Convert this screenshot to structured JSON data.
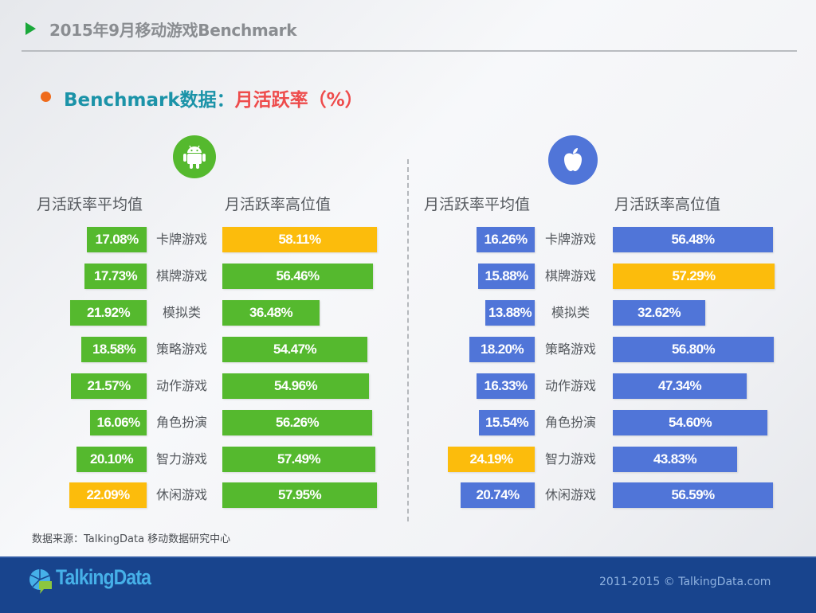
{
  "header": {
    "title": "2015年9月移动游戏Benchmark",
    "subtitle_prefix": "Benchmark数据：",
    "subtitle_metric": "月活跃率（%）"
  },
  "colors": {
    "android_green": "#55b92e",
    "ios_blue": "#5075d8",
    "highlight_yellow": "#fcbc0c",
    "title_arrow": "#1aa83a",
    "bullet_orange": "#ef6b1c",
    "subtitle_teal": "#1b93a8",
    "subtitle_red": "#ee4b4b",
    "footer_bg": "#18448d"
  },
  "android": {
    "icon": "android-icon",
    "avg_header": "月活跃率平均值",
    "high_header": "月活跃率高位值"
  },
  "ios": {
    "icon": "apple-icon",
    "avg_header": "月活跃率平均值",
    "high_header": "月活跃率高位值"
  },
  "chart_data": [
    {
      "type": "bar",
      "title": "Android - 月活跃率平均值",
      "categories": [
        "卡牌游戏",
        "棋牌游戏",
        "模拟类",
        "策略游戏",
        "动作游戏",
        "角色扮演",
        "智力游戏",
        "休闲游戏"
      ],
      "values": [
        17.08,
        17.73,
        21.92,
        18.58,
        21.57,
        16.06,
        20.1,
        22.09
      ],
      "labels": [
        "17.08%",
        "17.73%",
        "21.92%",
        "18.58%",
        "21.57%",
        "16.06%",
        "20.10%",
        "22.09%"
      ],
      "highlight_index": 7,
      "orientation": "horizontal",
      "direction": "right-to-left",
      "unit": "%"
    },
    {
      "type": "bar",
      "title": "Android - 月活跃率高位值",
      "categories": [
        "卡牌游戏",
        "棋牌游戏",
        "模拟类",
        "策略游戏",
        "动作游戏",
        "角色扮演",
        "智力游戏",
        "休闲游戏"
      ],
      "values": [
        58.11,
        56.46,
        36.48,
        54.47,
        54.96,
        56.26,
        57.49,
        57.95
      ],
      "labels": [
        "58.11%",
        "56.46%",
        "36.48%",
        "54.47%",
        "54.96%",
        "56.26%",
        "57.49%",
        "57.95%"
      ],
      "highlight_index": 0,
      "orientation": "horizontal",
      "direction": "left-to-right",
      "unit": "%"
    },
    {
      "type": "bar",
      "title": "iOS - 月活跃率平均值",
      "categories": [
        "卡牌游戏",
        "棋牌游戏",
        "模拟类",
        "策略游戏",
        "动作游戏",
        "角色扮演",
        "智力游戏",
        "休闲游戏"
      ],
      "values": [
        16.26,
        15.88,
        13.88,
        18.2,
        16.33,
        15.54,
        24.19,
        20.74
      ],
      "labels": [
        "16.26%",
        "15.88%",
        "13.88%",
        "18.20%",
        "16.33%",
        "15.54%",
        "24.19%",
        "20.74%"
      ],
      "highlight_index": 6,
      "orientation": "horizontal",
      "direction": "right-to-left",
      "unit": "%"
    },
    {
      "type": "bar",
      "title": "iOS - 月活跃率高位值",
      "categories": [
        "卡牌游戏",
        "棋牌游戏",
        "模拟类",
        "策略游戏",
        "动作游戏",
        "角色扮演",
        "智力游戏",
        "休闲游戏"
      ],
      "values": [
        56.48,
        57.29,
        32.62,
        56.8,
        47.34,
        54.6,
        43.83,
        56.59
      ],
      "labels": [
        "56.48%",
        "57.29%",
        "32.62%",
        "56.80%",
        "47.34%",
        "54.60%",
        "43.83%",
        "56.59%"
      ],
      "highlight_index": 1,
      "orientation": "horizontal",
      "direction": "left-to-right",
      "unit": "%"
    }
  ],
  "footer": {
    "source": "数据来源：TalkingData 移动数据研究中心",
    "logo_text": "TalkingData",
    "copyright": "2011-2015 © TalkingData.com"
  }
}
